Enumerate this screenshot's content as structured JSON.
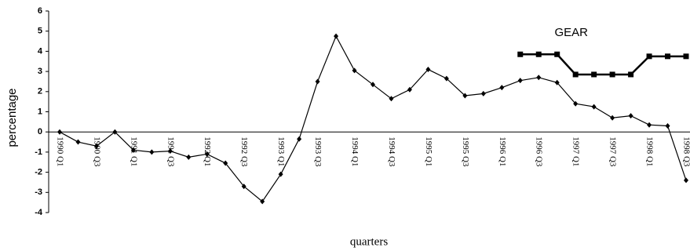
{
  "chart_data": {
    "type": "line",
    "x_label": "quarters",
    "y_label": "percentage",
    "categories": [
      "1990 Q1",
      null,
      "1990 Q3",
      null,
      "1991 Q1",
      null,
      "1991 Q3",
      null,
      "1992 Q1",
      null,
      "1992 Q3",
      null,
      "1993 Q1",
      null,
      "1993 Q3",
      null,
      "1994 Q1",
      null,
      "1994 Q3",
      null,
      "1995 Q1",
      null,
      "1995 Q3",
      null,
      "1996 Q1",
      null,
      "1996 Q3",
      null,
      "1997 Q1",
      null,
      "1997 Q3",
      null,
      "1998 Q1",
      null,
      "1998 Q3"
    ],
    "series": [
      {
        "color": "#000000",
        "marker": "diamond",
        "values": [
          0,
          -0.5,
          -0.7,
          0,
          -0.9,
          -1.0,
          -0.95,
          -1.25,
          -1.1,
          -1.55,
          -2.7,
          -3.45,
          -2.1,
          -0.35,
          2.5,
          4.75,
          3.05,
          2.35,
          1.65,
          2.1,
          3.1,
          2.65,
          1.8,
          1.9,
          2.2,
          2.55,
          2.7,
          2.45,
          1.4,
          1.25,
          0.7,
          0.8,
          0.35,
          0.3,
          -2.4
        ]
      },
      {
        "name": "GEAR",
        "color": "#000000",
        "marker": "square",
        "values": [
          null,
          null,
          null,
          null,
          null,
          null,
          null,
          null,
          null,
          null,
          null,
          null,
          null,
          null,
          null,
          null,
          null,
          null,
          null,
          null,
          null,
          null,
          null,
          null,
          null,
          3.85,
          3.85,
          3.85,
          2.85,
          2.85,
          2.85,
          2.85,
          3.75,
          3.75,
          3.75
        ]
      }
    ],
    "ylim": [
      -4,
      6
    ],
    "yticks": [
      -4,
      -3,
      -2,
      -1,
      0,
      1,
      2,
      3,
      4,
      5,
      6
    ]
  }
}
